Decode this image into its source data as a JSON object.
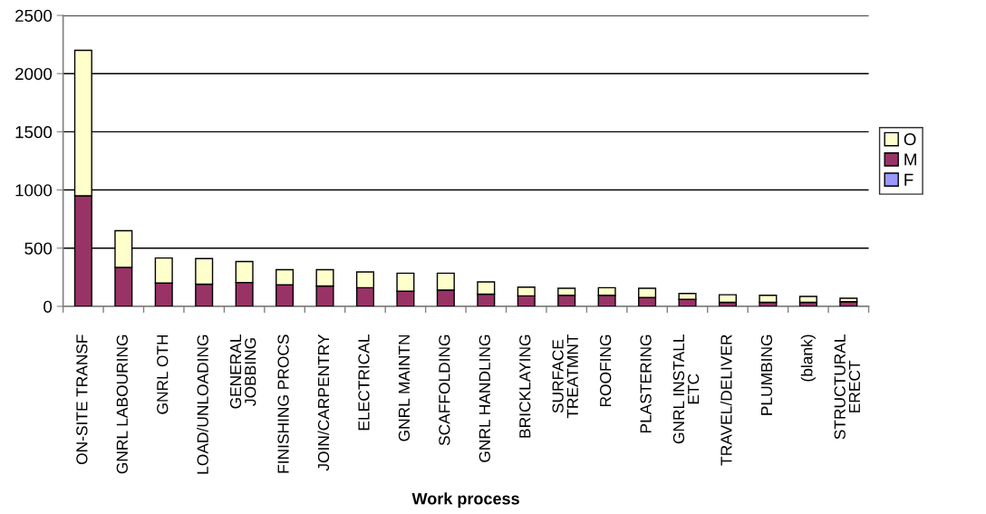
{
  "chart_data": {
    "type": "bar",
    "xlabel": "Work process",
    "categories": [
      "ON-SITE TRANSF",
      "GNRL LABOURING",
      "GNRL OTH",
      "LOAD/UNLOADING",
      "GENERAL\nJOBBING",
      "FINISHING PROCS",
      "JOIN/CARPENTRY",
      "ELECTRICAL",
      "GNRL MAINTN",
      "SCAFFOLDING",
      "GNRL HANDLING",
      "BRICKLAYING",
      "SURFACE\nTREATMNT",
      "ROOFING",
      "PLASTERING",
      "GNRL INSTALL\nETC",
      "TRAVEL/DELIVER",
      "PLUMBING",
      "(blank)",
      "STRUCTURAL\nERECT"
    ],
    "series": [
      {
        "name": "F",
        "color": "#9999ff",
        "values": [
          0,
          0,
          0,
          0,
          0,
          0,
          0,
          0,
          0,
          0,
          0,
          0,
          0,
          0,
          0,
          0,
          0,
          0,
          0,
          0
        ]
      },
      {
        "name": "M",
        "color": "#993366",
        "values": [
          950,
          335,
          200,
          190,
          205,
          185,
          175,
          160,
          130,
          140,
          105,
          90,
          95,
          95,
          75,
          60,
          35,
          35,
          35,
          40
        ]
      },
      {
        "name": "O",
        "color": "#ffffcc",
        "values": [
          1250,
          315,
          215,
          220,
          180,
          130,
          140,
          135,
          155,
          145,
          105,
          75,
          60,
          65,
          80,
          50,
          65,
          60,
          50,
          30
        ]
      }
    ],
    "stacked": true,
    "ylim": [
      0,
      2500
    ],
    "yticks": [
      0,
      500,
      1000,
      1500,
      2000,
      2500
    ],
    "grid": "y",
    "legend": "right"
  }
}
